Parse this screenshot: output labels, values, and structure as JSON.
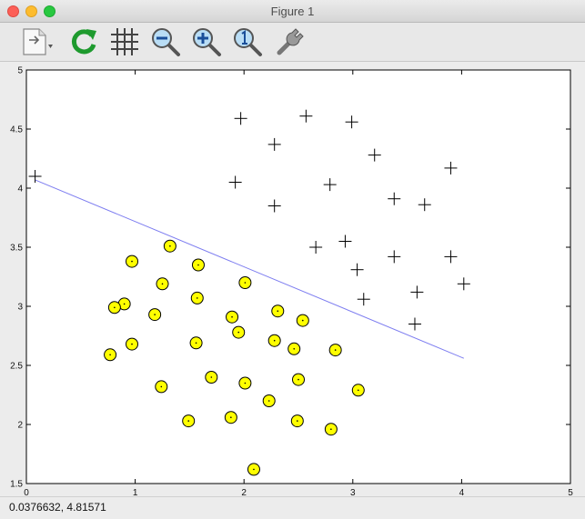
{
  "window": {
    "title": "Figure 1"
  },
  "toolbar": {
    "items": [
      {
        "name": "export-icon"
      },
      {
        "name": "refresh-icon"
      },
      {
        "name": "grid-icon"
      },
      {
        "name": "zoom-out-icon"
      },
      {
        "name": "zoom-in-icon"
      },
      {
        "name": "zoom-reset-icon"
      },
      {
        "name": "pan-tool-icon"
      }
    ]
  },
  "status": {
    "coords": "0.0376632,  4.81571"
  },
  "chart_data": {
    "type": "scatter",
    "xlim": [
      0,
      5
    ],
    "ylim": [
      1.5,
      5
    ],
    "xticks": [
      "0",
      "1",
      "2",
      "3",
      "4",
      "5"
    ],
    "yticks": [
      "1.5",
      "2",
      "2.5",
      "3",
      "3.5",
      "4",
      "4.5",
      "5"
    ],
    "grid": false,
    "colors": {
      "circle_fill": "#ffff00",
      "line": "#7d7df0",
      "marker": "#000000"
    },
    "series": [
      {
        "marker": "plus",
        "points": [
          [
            0.08,
            4.1
          ],
          [
            1.97,
            4.59
          ],
          [
            2.57,
            4.61
          ],
          [
            2.99,
            4.56
          ],
          [
            2.28,
            4.37
          ],
          [
            3.2,
            4.28
          ],
          [
            1.92,
            4.05
          ],
          [
            2.79,
            4.03
          ],
          [
            3.9,
            4.17
          ],
          [
            3.38,
            3.91
          ],
          [
            3.66,
            3.86
          ],
          [
            2.28,
            3.85
          ],
          [
            2.66,
            3.5
          ],
          [
            2.93,
            3.55
          ],
          [
            3.38,
            3.42
          ],
          [
            3.9,
            3.42
          ],
          [
            3.04,
            3.31
          ],
          [
            4.02,
            3.19
          ],
          [
            3.59,
            3.12
          ],
          [
            3.1,
            3.06
          ],
          [
            3.57,
            2.85
          ]
        ]
      },
      {
        "marker": "circle",
        "points": [
          [
            1.32,
            3.51
          ],
          [
            0.97,
            3.38
          ],
          [
            1.58,
            3.35
          ],
          [
            1.25,
            3.19
          ],
          [
            2.01,
            3.2
          ],
          [
            1.57,
            3.07
          ],
          [
            0.9,
            3.02
          ],
          [
            0.81,
            2.99
          ],
          [
            2.31,
            2.96
          ],
          [
            1.18,
            2.93
          ],
          [
            1.89,
            2.91
          ],
          [
            2.54,
            2.88
          ],
          [
            1.95,
            2.78
          ],
          [
            0.97,
            2.68
          ],
          [
            1.56,
            2.69
          ],
          [
            2.28,
            2.71
          ],
          [
            2.46,
            2.64
          ],
          [
            2.84,
            2.63
          ],
          [
            0.77,
            2.59
          ],
          [
            1.7,
            2.4
          ],
          [
            2.5,
            2.38
          ],
          [
            2.01,
            2.35
          ],
          [
            1.24,
            2.32
          ],
          [
            3.05,
            2.29
          ],
          [
            2.23,
            2.2
          ],
          [
            1.88,
            2.06
          ],
          [
            1.49,
            2.03
          ],
          [
            2.49,
            2.03
          ],
          [
            2.8,
            1.96
          ],
          [
            2.09,
            1.62
          ]
        ]
      }
    ],
    "line": {
      "x": [
        0.08,
        4.02
      ],
      "y": [
        4.07,
        2.56
      ]
    }
  }
}
